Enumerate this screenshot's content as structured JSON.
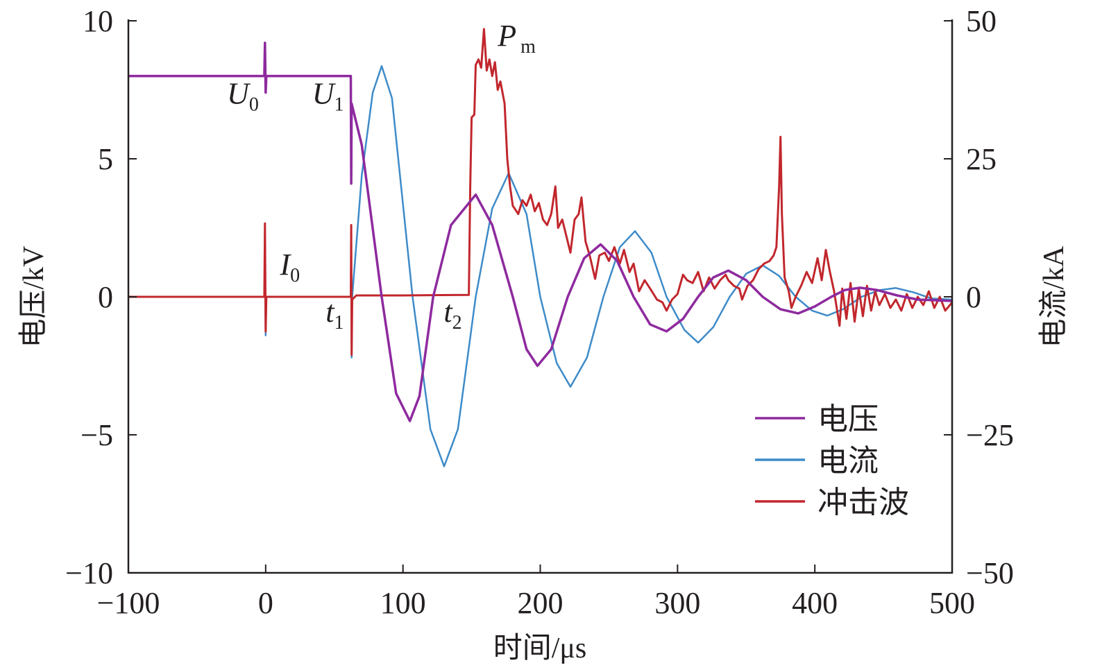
{
  "chart_data": {
    "type": "line",
    "xlabel": "时间/μs",
    "ylabel_left": "电压/kV",
    "ylabel_right": "电流/kA",
    "xlim": [
      -100,
      500
    ],
    "ylim_left": [
      -10,
      10
    ],
    "ylim_right": [
      -50,
      50
    ],
    "xticks": [
      "−100",
      "0",
      "100",
      "200",
      "300",
      "400",
      "500"
    ],
    "xtick_values": [
      -100,
      0,
      100,
      200,
      300,
      400,
      500
    ],
    "yticks_left": [
      "10",
      "5",
      "0",
      "−5",
      "−10"
    ],
    "ytick_left_values": [
      10,
      5,
      0,
      -5,
      -10
    ],
    "yticks_right": [
      "50",
      "25",
      "0",
      "−25",
      "−50"
    ],
    "ytick_right_values": [
      50,
      25,
      0,
      -25,
      -50
    ],
    "legend_position": "bottom-right",
    "annotations": [
      {
        "main": "U",
        "sub": "0",
        "x": 0,
        "y": 7.0
      },
      {
        "main": "U",
        "sub": "1",
        "x": 62,
        "y": 7.0
      },
      {
        "main": "I",
        "sub": "0",
        "x": 30,
        "y": 0.8
      },
      {
        "main": "t",
        "sub": "1",
        "x": 62,
        "y": -0.9
      },
      {
        "main": "t",
        "sub": "2",
        "x": 148,
        "y": -0.9
      },
      {
        "main": "P",
        "sub": "m",
        "x": 165,
        "y": 8.8
      }
    ],
    "series": [
      {
        "name": "电压",
        "axis": "left",
        "unit": "kV",
        "color": "#8e2a9e",
        "width": 3.5,
        "points": [
          [
            -100,
            8.0
          ],
          [
            -1,
            8.0
          ],
          [
            -0.5,
            9.2
          ],
          [
            0,
            7.4
          ],
          [
            0.5,
            8.0
          ],
          [
            62,
            8.0
          ],
          [
            62.3,
            4.1
          ],
          [
            62.6,
            7.0
          ],
          [
            70,
            5.5
          ],
          [
            84.5,
            0
          ],
          [
            95,
            -3.5
          ],
          [
            105,
            -4.5
          ],
          [
            112,
            -3.6
          ],
          [
            122,
            0
          ],
          [
            135,
            2.6
          ],
          [
            153,
            3.7
          ],
          [
            165,
            2.6
          ],
          [
            180,
            0
          ],
          [
            190,
            -1.9
          ],
          [
            198,
            -2.5
          ],
          [
            208,
            -1.9
          ],
          [
            220,
            0
          ],
          [
            232,
            1.4
          ],
          [
            244,
            1.9
          ],
          [
            256,
            1.3
          ],
          [
            268,
            0
          ],
          [
            280,
            -1.0
          ],
          [
            292,
            -1.25
          ],
          [
            304,
            -0.8
          ],
          [
            315,
            0
          ],
          [
            326,
            0.7
          ],
          [
            337,
            0.95
          ],
          [
            350,
            0.6
          ],
          [
            362,
            0
          ],
          [
            375,
            -0.45
          ],
          [
            388,
            -0.6
          ],
          [
            400,
            -0.35
          ],
          [
            412,
            0
          ],
          [
            422,
            0.25
          ],
          [
            433,
            0.33
          ],
          [
            445,
            0.25
          ],
          [
            460,
            0.05
          ],
          [
            475,
            -0.1
          ],
          [
            500,
            -0.15
          ]
        ]
      },
      {
        "name": "电流",
        "axis": "right",
        "unit": "kA",
        "color": "#3d8bc9",
        "width": 2.5,
        "points": [
          [
            -100,
            0
          ],
          [
            -1,
            0
          ],
          [
            -0.5,
            6
          ],
          [
            0,
            -7
          ],
          [
            0.5,
            0
          ],
          [
            62,
            0
          ],
          [
            62.3,
            13
          ],
          [
            62.6,
            -11
          ],
          [
            63,
            0
          ],
          [
            70,
            22
          ],
          [
            78,
            37
          ],
          [
            84.5,
            41.8
          ],
          [
            92,
            36
          ],
          [
            107,
            0
          ],
          [
            120,
            -24
          ],
          [
            130,
            -30.7
          ],
          [
            140,
            -24
          ],
          [
            153,
            0
          ],
          [
            165,
            16
          ],
          [
            177,
            22.4
          ],
          [
            190,
            15
          ],
          [
            200,
            0
          ],
          [
            212,
            -12
          ],
          [
            222,
            -16.3
          ],
          [
            234,
            -11
          ],
          [
            246,
            0
          ],
          [
            258,
            9
          ],
          [
            269,
            11.9
          ],
          [
            281,
            8
          ],
          [
            292,
            0
          ],
          [
            305,
            -6
          ],
          [
            315,
            -8.3
          ],
          [
            326,
            -5.5
          ],
          [
            338,
            0
          ],
          [
            350,
            4.2
          ],
          [
            362,
            5.7
          ],
          [
            374,
            3.8
          ],
          [
            386,
            0
          ],
          [
            398,
            -2.5
          ],
          [
            409,
            -3.4
          ],
          [
            421,
            -2.2
          ],
          [
            434,
            0
          ],
          [
            447,
            1.2
          ],
          [
            459,
            1.6
          ],
          [
            472,
            0.8
          ],
          [
            485,
            -0.3
          ],
          [
            500,
            -0.5
          ]
        ]
      },
      {
        "name": "冲击波",
        "axis": "left",
        "unit": "kV",
        "color": "#c1272d",
        "width": 3,
        "points": [
          [
            -100,
            0
          ],
          [
            -1,
            0
          ],
          [
            -0.5,
            2.66
          ],
          [
            0,
            -1.26
          ],
          [
            0.5,
            0
          ],
          [
            62,
            0
          ],
          [
            62.3,
            2.6
          ],
          [
            62.6,
            -2.1
          ],
          [
            63,
            -0.1
          ],
          [
            66,
            0.05
          ],
          [
            100,
            0.05
          ],
          [
            148,
            0.07
          ],
          [
            149,
            4
          ],
          [
            150,
            6.5
          ],
          [
            152,
            6.6
          ],
          [
            153,
            8.4
          ],
          [
            155,
            8.6
          ],
          [
            157,
            8.3
          ],
          [
            159,
            9.7
          ],
          [
            161,
            8.2
          ],
          [
            163,
            8.6
          ],
          [
            165,
            8.0
          ],
          [
            167,
            8.5
          ],
          [
            169,
            7.5
          ],
          [
            171,
            7.8
          ],
          [
            174,
            7.0
          ],
          [
            176,
            5
          ],
          [
            178,
            4.0
          ],
          [
            180,
            3.3
          ],
          [
            184,
            3.0
          ],
          [
            187,
            3.5
          ],
          [
            190,
            3.3
          ],
          [
            193,
            3.7
          ],
          [
            196,
            3.1
          ],
          [
            199,
            3.4
          ],
          [
            202,
            2.8
          ],
          [
            205,
            2.6
          ],
          [
            208,
            3.0
          ],
          [
            211,
            4.0
          ],
          [
            213,
            2.5
          ],
          [
            216,
            2.8
          ],
          [
            219,
            2.2
          ],
          [
            222,
            1.6
          ],
          [
            225,
            2.8
          ],
          [
            228,
            3.0
          ],
          [
            230,
            3.6
          ],
          [
            233,
            2.0
          ],
          [
            236,
            1.5
          ],
          [
            240,
            0.65
          ],
          [
            243,
            1.5
          ],
          [
            247,
            1.6
          ],
          [
            250,
            1.3
          ],
          [
            254,
            1.8
          ],
          [
            258,
            1.2
          ],
          [
            261,
            1.7
          ],
          [
            265,
            0.9
          ],
          [
            268,
            1.2
          ],
          [
            272,
            0.2
          ],
          [
            276,
            0.6
          ],
          [
            280,
            0.3
          ],
          [
            285,
            -0.1
          ],
          [
            289,
            -0.2
          ],
          [
            292,
            -0.5
          ],
          [
            296,
            -0.1
          ],
          [
            300,
            0.1
          ],
          [
            304,
            0.8
          ],
          [
            307,
            0.6
          ],
          [
            311,
            0.5
          ],
          [
            315,
            0.9
          ],
          [
            319,
            0.2
          ],
          [
            323,
            0.7
          ],
          [
            327,
            0.3
          ],
          [
            331,
            0.6
          ],
          [
            335,
            0.8
          ],
          [
            337,
            0.6
          ],
          [
            341,
            0.4
          ],
          [
            345,
            0.3
          ],
          [
            347,
            -0.1
          ],
          [
            351,
            0.4
          ],
          [
            355,
            0.6
          ],
          [
            359,
            1.0
          ],
          [
            363,
            1.2
          ],
          [
            367,
            1.3
          ],
          [
            370,
            1.5
          ],
          [
            372,
            1.8
          ],
          [
            374,
            4.0
          ],
          [
            375,
            5.8
          ],
          [
            376,
            3.0
          ],
          [
            378,
            0.7
          ],
          [
            381,
            0.2
          ],
          [
            383,
            -0.4
          ],
          [
            386,
            0.0
          ],
          [
            390,
            0.4
          ],
          [
            394,
            0.9
          ],
          [
            398,
            0.5
          ],
          [
            402,
            1.4
          ],
          [
            405,
            0.6
          ],
          [
            408,
            1.7
          ],
          [
            411,
            0.9
          ],
          [
            414,
            0.2
          ],
          [
            418,
            -1.05
          ],
          [
            420,
            0.3
          ],
          [
            423,
            -0.8
          ],
          [
            426,
            0.5
          ],
          [
            429,
            -0.9
          ],
          [
            432,
            0.3
          ],
          [
            435,
            -0.7
          ],
          [
            438,
            0.4
          ],
          [
            441,
            -0.5
          ],
          [
            444,
            0.2
          ],
          [
            447,
            -0.3
          ],
          [
            451,
            0.1
          ],
          [
            455,
            -0.4
          ],
          [
            459,
            -0.1
          ],
          [
            463,
            -0.5
          ],
          [
            467,
            0.1
          ],
          [
            471,
            -0.4
          ],
          [
            475,
            0.0
          ],
          [
            479,
            -0.3
          ],
          [
            483,
            0.2
          ],
          [
            487,
            -0.4
          ],
          [
            491,
            0.0
          ],
          [
            495,
            -0.5
          ],
          [
            500,
            -0.2
          ]
        ]
      }
    ]
  }
}
